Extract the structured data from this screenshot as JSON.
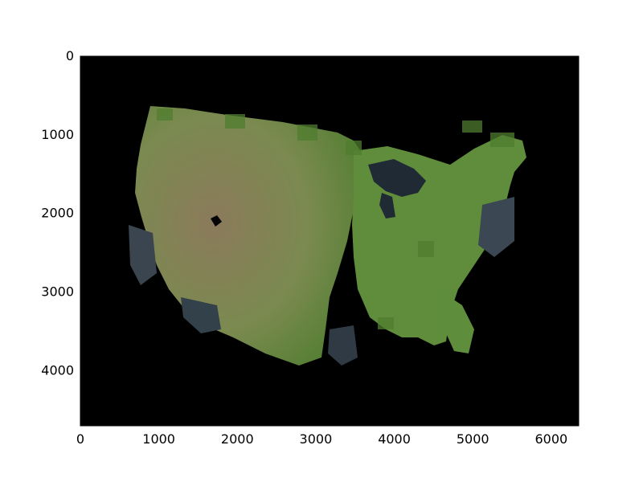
{
  "figure": {
    "type": "image",
    "description_colors": {
      "background": "#000000",
      "land_green": "#5f8d3b",
      "land_brown": "#8c7a5b",
      "water": "#1f2a35",
      "tile_shadow": "#3a4550"
    }
  },
  "chart_data": {
    "type": "image",
    "xlim": [
      0,
      6350
    ],
    "ylim": [
      4700,
      0
    ],
    "xticks": [
      0,
      1000,
      2000,
      3000,
      4000,
      5000,
      6000
    ],
    "yticks": [
      0,
      1000,
      2000,
      3000,
      4000
    ],
    "xtick_labels": [
      "0",
      "1000",
      "2000",
      "3000",
      "4000",
      "5000",
      "6000"
    ],
    "ytick_labels": [
      "0",
      "1000",
      "2000",
      "3000",
      "4000"
    ],
    "grid": false
  }
}
